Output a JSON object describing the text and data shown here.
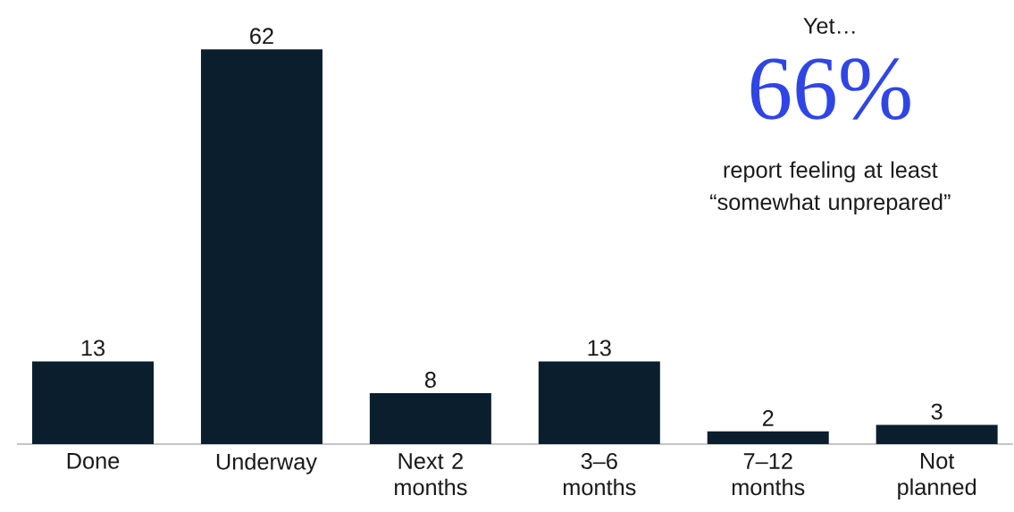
{
  "chart_data": {
    "type": "bar",
    "categories": [
      "Done",
      "Underway",
      "Next 2 months",
      "3–6 months",
      "7–12 months",
      "Not planned"
    ],
    "values": [
      13,
      62,
      8,
      13,
      2,
      3
    ],
    "color": "#0a1e2e",
    "data_labels": true,
    "annotations": [
      "Yet…",
      "66%",
      "report feeling at least “somewhat unprepared”"
    ]
  }
}
